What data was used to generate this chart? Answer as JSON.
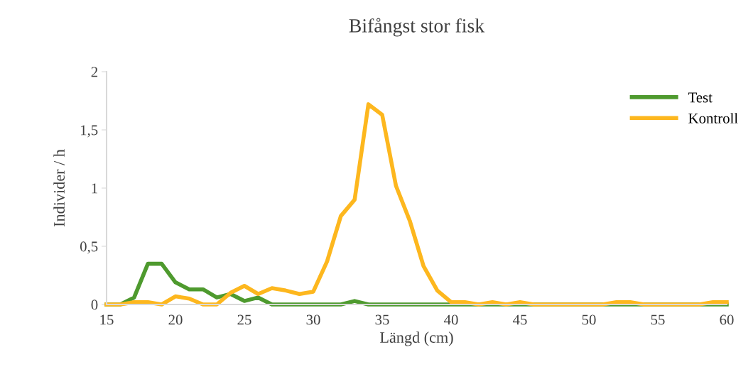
{
  "chart_data": {
    "type": "line",
    "title": "Bifångst stor fisk",
    "xlabel": "Längd (cm)",
    "ylabel": "Individer / h",
    "x": [
      15,
      16,
      17,
      18,
      19,
      20,
      21,
      22,
      23,
      24,
      25,
      26,
      27,
      28,
      29,
      30,
      31,
      32,
      33,
      34,
      35,
      36,
      37,
      38,
      39,
      40,
      41,
      42,
      43,
      44,
      45,
      46,
      47,
      48,
      49,
      50,
      51,
      52,
      53,
      54,
      55,
      56,
      57,
      58,
      59,
      60
    ],
    "series": [
      {
        "name": "Test",
        "color": "#4e9a2e",
        "values": [
          0,
          0,
          0.06,
          0.35,
          0.35,
          0.19,
          0.13,
          0.13,
          0.06,
          0.09,
          0.03,
          0.06,
          0,
          0,
          0,
          0,
          0,
          0,
          0.03,
          0,
          0,
          0,
          0,
          0,
          0,
          0,
          0,
          0,
          0,
          0,
          0,
          0,
          0,
          0,
          0,
          0,
          0,
          0,
          0,
          0,
          0,
          0,
          0,
          0,
          0,
          0
        ]
      },
      {
        "name": "Kontroll",
        "color": "#fdb71e",
        "values": [
          0,
          0,
          0.02,
          0.02,
          0,
          0.07,
          0.05,
          0,
          0,
          0.1,
          0.16,
          0.09,
          0.14,
          0.12,
          0.09,
          0.11,
          0.37,
          0.76,
          0.9,
          1.72,
          1.63,
          1.02,
          0.72,
          0.33,
          0.12,
          0.02,
          0.02,
          0,
          0.02,
          0,
          0.02,
          0,
          0,
          0,
          0,
          0,
          0,
          0.02,
          0.02,
          0,
          0,
          0,
          0,
          0,
          0.02,
          0.02
        ]
      }
    ],
    "xlim": [
      15,
      60
    ],
    "xticks": [
      15,
      20,
      25,
      30,
      35,
      40,
      45,
      50,
      55,
      60
    ],
    "ylim": [
      0,
      2
    ],
    "yticks": [
      0,
      {
        "value": 0.5,
        "label": "0,5"
      },
      1,
      {
        "value": 1.5,
        "label": "1,5"
      },
      2
    ],
    "grid": false,
    "legend": "top right",
    "marker": "none",
    "line_style": "solid"
  }
}
